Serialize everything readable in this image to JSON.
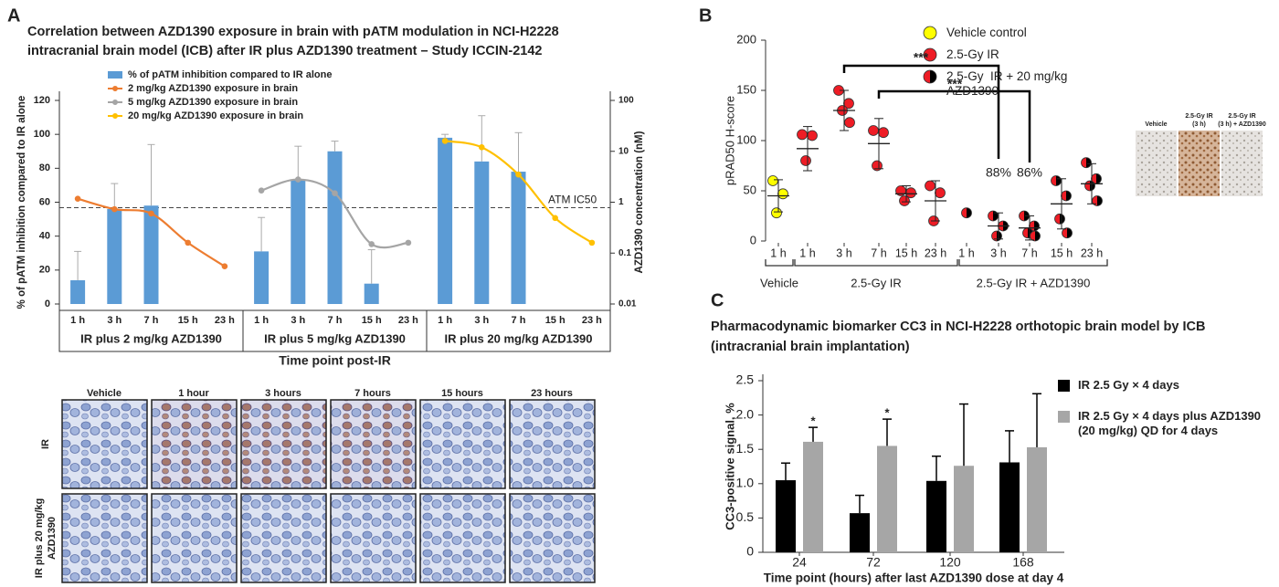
{
  "panels": [
    "A",
    "B",
    "C"
  ],
  "chart_data": [
    {
      "type": "bar_line",
      "title": [
        "Correlation between AZD1390 exposure in brain with pATM modulation in NCI-H2228",
        "intracranial brain model (ICB)  after IR plus AZD1390 treatment – Study ICCIN-2142"
      ],
      "categories": [
        "1 h",
        "3 h",
        "7 h",
        "15 h",
        "23 h",
        "1 h",
        "3 h",
        "7 h",
        "15 h",
        "23 h",
        "1 h",
        "3 h",
        "7 h",
        "15 h",
        "23 h"
      ],
      "groups": [
        "IR plus 2 mg/kg AZD1390",
        "IR plus 5 mg/kg AZD1390",
        "IR plus 20 mg/kg AZD1390"
      ],
      "x_label": "Time point post-IR",
      "y_label": "% of pATM inhibition compared to IR alone",
      "y2_label": "AZD1390 concentration (nM)",
      "ylim": [
        0,
        120
      ],
      "yticks": [
        0,
        20,
        40,
        60,
        80,
        100,
        120
      ],
      "y2lim": [
        0.01,
        100
      ],
      "y2ticks": [
        0.01,
        0.1,
        1,
        10,
        100
      ],
      "y2log": true,
      "series": [
        {
          "name": "% of pATM inhibition compared to IR alone",
          "type": "bar",
          "color": "#5b9bd5",
          "values": [
            14,
            56,
            58,
            null,
            null,
            31,
            73,
            90,
            12,
            null,
            98,
            84,
            78,
            null,
            null
          ],
          "errors": [
            17,
            15,
            36,
            null,
            null,
            20,
            20,
            6,
            20,
            null,
            2,
            27,
            23,
            null,
            null
          ]
        },
        {
          "name": "2 mg/kg AZD1390 exposure in brain",
          "type": "line",
          "axis": "y2",
          "color": "#ed7d31",
          "values": [
            1.17,
            0.73,
            0.6,
            0.16,
            0.055,
            null,
            null,
            null,
            null,
            null,
            null,
            null,
            null,
            null,
            null
          ]
        },
        {
          "name": "5 mg/kg AZD1390 exposure in brain",
          "type": "line",
          "axis": "y2",
          "color": "#a5a5a5",
          "values": [
            null,
            null,
            null,
            null,
            null,
            1.7,
            2.8,
            1.5,
            0.15,
            0.16,
            null,
            null,
            null,
            null,
            null
          ]
        },
        {
          "name": "20 mg/kg AZD1390 exposure in brain",
          "type": "line",
          "axis": "y2",
          "color": "#ffc000",
          "values": [
            null,
            null,
            null,
            null,
            null,
            null,
            null,
            null,
            null,
            null,
            16,
            12,
            3.5,
            0.49,
            0.16
          ]
        }
      ],
      "reference_line": {
        "label": "ATM IC50",
        "value": 0.78,
        "axis": "y2"
      }
    },
    {
      "type": "scatter_dot",
      "y_label": "pRAD50 H-score",
      "ylim": [
        0,
        200
      ],
      "yticks": [
        0,
        50,
        100,
        150,
        200
      ],
      "categories": [
        "1 h",
        "1 h",
        "3 h",
        "7 h",
        "15 h",
        "23 h",
        "1 h",
        "3 h",
        "7 h",
        "15 h",
        "23 h"
      ],
      "groups": [
        "Vehicle",
        "2.5-Gy IR",
        "2.5-Gy IR + AZD1390"
      ],
      "series": [
        {
          "name": "Vehicle control",
          "color": "#ffff00",
          "values": [
            [
              60,
              47,
              28
            ],
            null,
            null,
            null,
            null,
            null,
            null,
            null,
            null,
            null,
            null
          ],
          "mean": [
            45,
            null,
            null,
            null,
            null,
            null,
            null,
            null,
            null,
            null,
            null
          ],
          "sd": [
            16,
            null,
            null,
            null,
            null,
            null,
            null,
            null,
            null,
            null,
            null
          ]
        },
        {
          "name": "2.5-Gy IR",
          "color": "#ee1c25",
          "values": [
            null,
            [
              106,
              105,
              80
            ],
            [
              150,
              137,
              130,
              118
            ],
            [
              110,
              108,
              75
            ],
            [
              50,
              48,
              40
            ],
            [
              55,
              48,
              20
            ],
            null,
            null,
            null,
            null,
            null
          ],
          "mean": [
            null,
            92,
            130,
            97,
            47,
            40,
            null,
            null,
            null,
            null,
            null
          ],
          "sd": [
            null,
            22,
            20,
            25,
            8,
            20,
            null,
            null,
            null,
            null,
            null
          ]
        },
        {
          "name": "2.5-Gy  IR + 20 mg/kg AZD1390",
          "color": "#ee1c25",
          "color2": "#000000",
          "values": [
            null,
            null,
            null,
            null,
            null,
            null,
            [
              28
            ],
            [
              25,
              15,
              5
            ],
            [
              25,
              15,
              8,
              5
            ],
            [
              60,
              45,
              22,
              8
            ],
            [
              78,
              62,
              55,
              40
            ]
          ],
          "mean": [
            null,
            null,
            null,
            null,
            null,
            null,
            null,
            15,
            13,
            37,
            57
          ],
          "sd": [
            null,
            null,
            null,
            null,
            null,
            null,
            null,
            13,
            12,
            25,
            20
          ]
        }
      ],
      "annotations": [
        "***",
        "***"
      ],
      "inhibition": {
        "values": [
          88,
          86
        ],
        "value_labels": [
          "88%",
          "86%"
        ]
      }
    },
    {
      "type": "bar",
      "title": [
        "Pharmacodynamic biomarker CC3 in NCI-H2228 orthotopic brain model by ICB",
        "(intracranial brain implantation)"
      ],
      "categories": [
        "24",
        "72",
        "120",
        "168"
      ],
      "y_label": "CC3-positive signal, %",
      "x_label": "Time point (hours) after last AZD1390 dose at day 4",
      "ylim": [
        0,
        2.5
      ],
      "yticks": [
        0,
        0.5,
        {
          "value": 1,
          "label": "1.0"
        },
        1.5,
        {
          "value": 2,
          "label": "2.0"
        },
        2.5
      ],
      "series": [
        {
          "name": "IR 2.5 Gy × 4 days",
          "color": "#000000",
          "values": [
            1.05,
            0.57,
            1.04,
            1.31
          ],
          "errors": [
            0.25,
            0.26,
            0.36,
            0.46
          ]
        },
        {
          "name": "IR 2.5 Gy × 4 days plus AZD1390 (20 mg/kg) QD for 4 days",
          "color": "#a6a6a6",
          "values": [
            1.61,
            1.55,
            1.26,
            1.53
          ],
          "errors": [
            0.21,
            0.39,
            0.9,
            0.78
          ]
        }
      ],
      "significance": [
        "*",
        "*",
        null,
        null
      ]
    }
  ],
  "micrographs_a": {
    "columns": [
      "Vehicle",
      "1 hour",
      "3 hours",
      "7 hours",
      "15 hours",
      "23 hours"
    ],
    "rows": [
      [
        "IR"
      ],
      [
        "IR plus 20 mg/kg",
        "AZD1390"
      ]
    ]
  },
  "micrographs_b": {
    "columns": [
      [
        "Vehicle"
      ],
      [
        "2.5-Gy IR",
        "(3 h)"
      ],
      [
        "2.5-Gy IR",
        "(3 h) + AZD1390"
      ]
    ]
  }
}
